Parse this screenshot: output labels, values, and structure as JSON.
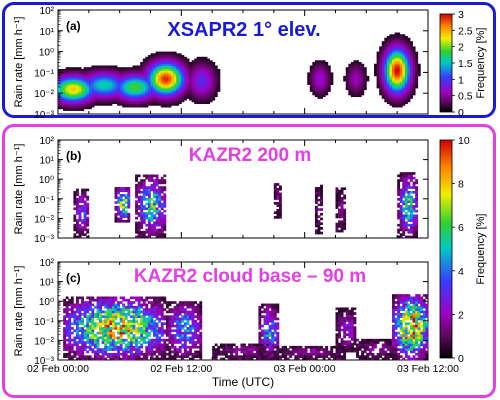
{
  "colors": {
    "frame_a": "#1a1ad6",
    "frame_b": "#e33fe3",
    "title_a": "#1a1ad6",
    "title_bc": "#e33fe3"
  },
  "x_ticks": [
    "02 Feb 00:00",
    "02 Feb 12:00",
    "03 Feb 00:00",
    "03 Feb 12:00"
  ],
  "x_label": "Time (UTC)",
  "y_ticks": [
    "10²",
    "10¹",
    "10⁰",
    "10⁻¹",
    "10⁻²",
    "10⁻³"
  ],
  "y_label": "Rain rate [mm h⁻¹]",
  "chart_data": [
    {
      "type": "heatmap",
      "panel_label": "(a)",
      "title": "XSAPR2 1° elev.",
      "x_range_hours": [
        0,
        36
      ],
      "y_range_log10": [
        -3,
        2
      ],
      "colorbar": {
        "label": "Frequency [%]",
        "range": [
          0,
          3
        ],
        "ticks": [
          "3",
          "2.5",
          "2",
          "1.5",
          "1",
          "0.5",
          "0"
        ]
      },
      "blobs": [
        {
          "t": 1.5,
          "logr": -1.8,
          "w": 2.0,
          "h": 0.6,
          "peak": 2.4
        },
        {
          "t": 4.5,
          "logr": -1.6,
          "w": 2.2,
          "h": 0.6,
          "peak": 1.6
        },
        {
          "t": 7.5,
          "logr": -1.7,
          "w": 2.0,
          "h": 0.6,
          "peak": 1.9
        },
        {
          "t": 10.5,
          "logr": -1.3,
          "w": 1.7,
          "h": 0.75,
          "peak": 2.9
        },
        {
          "t": 14.0,
          "logr": -1.4,
          "w": 1.3,
          "h": 0.8,
          "peak": 0.9
        },
        {
          "t": 25.5,
          "logr": -1.3,
          "w": 0.9,
          "h": 0.7,
          "peak": 0.7
        },
        {
          "t": 29.0,
          "logr": -1.3,
          "w": 0.9,
          "h": 0.7,
          "peak": 0.6
        },
        {
          "t": 33.0,
          "logr": -0.9,
          "w": 1.2,
          "h": 1.0,
          "peak": 3.0
        }
      ]
    },
    {
      "type": "heatmap",
      "panel_label": "(b)",
      "title": "KAZR2 200 m",
      "x_range_hours": [
        0,
        36
      ],
      "y_range_log10": [
        -3,
        2
      ],
      "colorbar": {
        "label": "Frequency [%]",
        "range": [
          0,
          10
        ],
        "ticks": [
          "10",
          "8",
          "6",
          "4",
          "2",
          "0"
        ]
      },
      "clusters": [
        {
          "t0": 1.5,
          "t1": 3.0,
          "lo": -3.0,
          "hi": -0.5,
          "peak": 4
        },
        {
          "t0": 5.5,
          "t1": 7.0,
          "lo": -2.2,
          "hi": -0.4,
          "peak": 8
        },
        {
          "t0": 7.5,
          "t1": 10.5,
          "lo": -3.0,
          "hi": 0.2,
          "peak": 6
        },
        {
          "t0": 21.0,
          "t1": 21.6,
          "lo": -2.0,
          "hi": -0.2,
          "peak": 2
        },
        {
          "t0": 25.0,
          "t1": 25.6,
          "lo": -2.8,
          "hi": -0.3,
          "peak": 2
        },
        {
          "t0": 27.0,
          "t1": 28.0,
          "lo": -2.7,
          "hi": -0.5,
          "peak": 2
        },
        {
          "t0": 33.0,
          "t1": 35.0,
          "lo": -3.0,
          "hi": 0.3,
          "peak": 6
        }
      ]
    },
    {
      "type": "heatmap",
      "panel_label": "(c)",
      "title": "KAZR2 cloud base – 90 m",
      "x_range_hours": [
        0,
        36
      ],
      "y_range_log10": [
        -3,
        2
      ],
      "clusters": [
        {
          "t0": 0.5,
          "t1": 10.5,
          "lo": -3.0,
          "hi": 0.2,
          "peak": 9
        },
        {
          "t0": 10.5,
          "t1": 14.0,
          "lo": -3.0,
          "hi": 0.0,
          "peak": 5
        },
        {
          "t0": 15.0,
          "t1": 21.0,
          "lo": -3.0,
          "hi": -2.2,
          "peak": 2
        },
        {
          "t0": 19.5,
          "t1": 21.5,
          "lo": -3.0,
          "hi": -0.2,
          "peak": 5
        },
        {
          "t0": 21.0,
          "t1": 28.0,
          "lo": -3.0,
          "hi": -2.3,
          "peak": 2
        },
        {
          "t0": 27.0,
          "t1": 29.0,
          "lo": -2.6,
          "hi": -0.4,
          "peak": 3
        },
        {
          "t0": 29.0,
          "t1": 33.0,
          "lo": -3.0,
          "hi": -2.0,
          "peak": 2
        },
        {
          "t0": 32.5,
          "t1": 36.0,
          "lo": -3.0,
          "hi": 0.3,
          "peak": 10
        }
      ]
    }
  ]
}
